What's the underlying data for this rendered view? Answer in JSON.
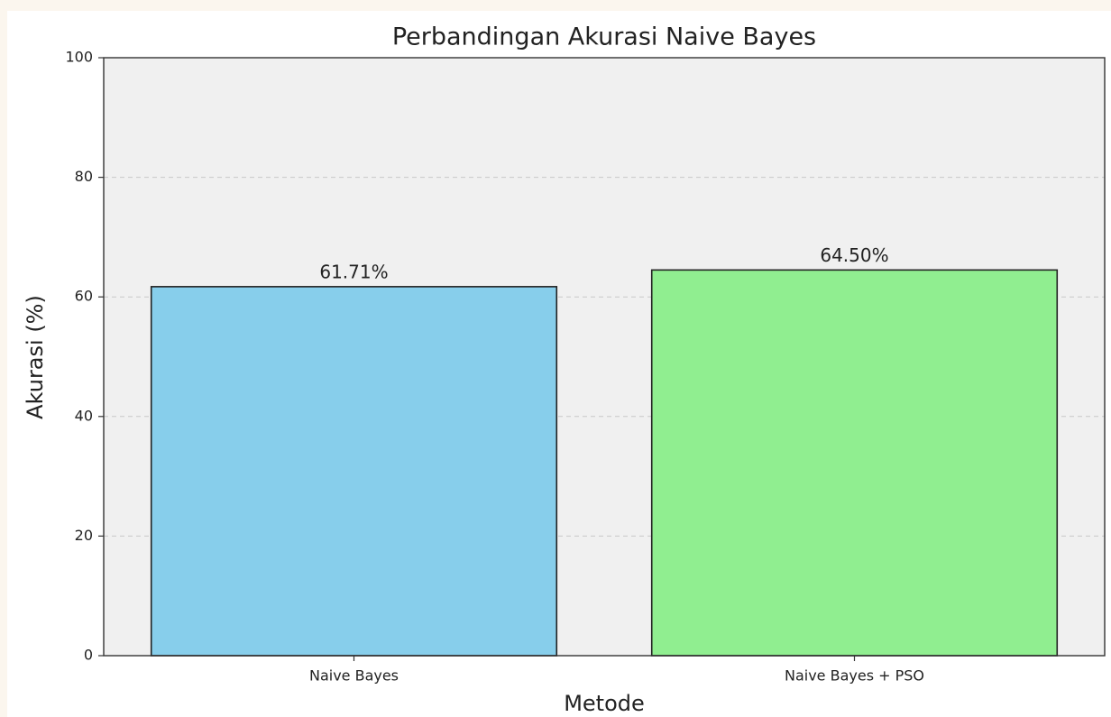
{
  "chart_data": {
    "type": "bar",
    "title": "Perbandingan Akurasi Naive Bayes",
    "x_label": "Metode",
    "y_label": "Akurasi (%)",
    "categories": [
      "Naive Bayes",
      "Naive Bayes + PSO"
    ],
    "values": [
      61.71,
      64.5
    ],
    "value_labels": [
      "61.71%",
      "64.50%"
    ],
    "colors": [
      "#87ceeb",
      "#90ee90"
    ],
    "ylim": [
      0,
      100
    ],
    "yticks": [
      0,
      20,
      40,
      60,
      80,
      100
    ],
    "grid": true
  }
}
